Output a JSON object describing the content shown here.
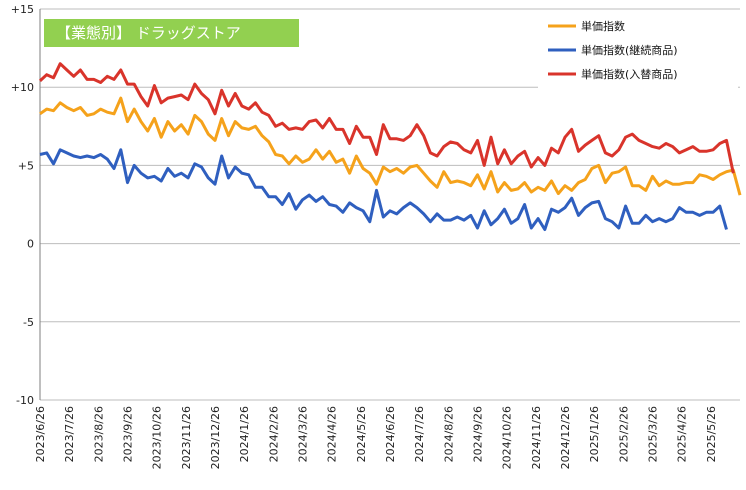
{
  "chart_data": {
    "type": "line",
    "title": "【業態別】 ドラッグストア",
    "xlabel": "",
    "ylabel": "",
    "ylim": [
      -10,
      15
    ],
    "yticks": [
      -10,
      -5,
      0,
      5,
      10,
      15
    ],
    "ytick_labels": [
      "-10",
      "-5",
      "0",
      "+5",
      "+10",
      "+15"
    ],
    "grid": "horizontal",
    "legend_position": "top-right",
    "x_tick_labels": [
      "2023/6/26",
      "2023/7/26",
      "2023/8/26",
      "2023/9/26",
      "2023/10/26",
      "2023/11/26",
      "2023/12/26",
      "2024/1/26",
      "2024/2/26",
      "2024/3/26",
      "2024/4/26",
      "2024/5/26",
      "2024/6/26",
      "2024/7/26",
      "2024/8/26",
      "2024/9/26",
      "2024/10/26",
      "2024/11/26",
      "2024/12/26",
      "2025/1/26",
      "2025/2/26",
      "2025/3/26",
      "2025/4/26",
      "2025/5/26"
    ],
    "series": [
      {
        "name": "単価指数",
        "color": "#F5A21B",
        "values": [
          8.3,
          8.6,
          8.5,
          9.0,
          8.7,
          8.5,
          8.7,
          8.2,
          8.3,
          8.6,
          8.4,
          8.3,
          9.3,
          7.8,
          8.6,
          7.8,
          7.2,
          8.0,
          6.8,
          7.8,
          7.2,
          7.6,
          7.0,
          8.2,
          7.8,
          7.0,
          6.6,
          8.0,
          6.9,
          7.8,
          7.4,
          7.3,
          7.5,
          6.9,
          6.5,
          5.7,
          5.6,
          5.1,
          5.6,
          5.2,
          5.4,
          6.0,
          5.4,
          5.9,
          5.2,
          5.4,
          4.5,
          5.6,
          4.8,
          4.5,
          3.8,
          4.9,
          4.6,
          4.8,
          4.5,
          4.9,
          5.0,
          4.5,
          4.0,
          3.6,
          4.6,
          3.9,
          4.0,
          3.9,
          3.7,
          4.4,
          3.5,
          4.6,
          3.3,
          3.9,
          3.4,
          3.5,
          3.9,
          3.3,
          3.6,
          3.4,
          4.0,
          3.2,
          3.7,
          3.4,
          3.9,
          4.1,
          4.8,
          5.0,
          3.9,
          4.5,
          4.6,
          4.9,
          3.7,
          3.7,
          3.4,
          4.3,
          3.7,
          4.0,
          3.8,
          3.8,
          3.9,
          3.9,
          4.4,
          4.3,
          4.1,
          4.4,
          4.6,
          4.7,
          3.1
        ]
      },
      {
        "name": "単価指数(継続商品)",
        "color": "#2F5FBF",
        "values": [
          5.7,
          5.8,
          5.1,
          6.0,
          5.8,
          5.6,
          5.5,
          5.6,
          5.5,
          5.7,
          5.4,
          4.8,
          6.0,
          3.9,
          5.0,
          4.5,
          4.2,
          4.3,
          4.0,
          4.8,
          4.3,
          4.5,
          4.2,
          5.1,
          4.9,
          4.2,
          3.8,
          5.6,
          4.2,
          4.9,
          4.5,
          4.4,
          3.6,
          3.6,
          3.0,
          3.0,
          2.5,
          3.2,
          2.2,
          2.8,
          3.1,
          2.7,
          3.0,
          2.5,
          2.4,
          2.0,
          2.6,
          2.3,
          2.1,
          1.4,
          3.4,
          1.7,
          2.1,
          1.9,
          2.3,
          2.6,
          2.3,
          1.9,
          1.4,
          1.9,
          1.5,
          1.5,
          1.7,
          1.5,
          1.8,
          1.0,
          2.1,
          1.2,
          1.6,
          2.2,
          1.3,
          1.6,
          2.5,
          1.0,
          1.6,
          0.9,
          2.2,
          2.0,
          2.3,
          2.9,
          1.8,
          2.3,
          2.6,
          2.7,
          1.6,
          1.4,
          1.0,
          2.4,
          1.3,
          1.3,
          1.8,
          1.4,
          1.6,
          1.4,
          1.6,
          2.3,
          2.0,
          2.0,
          1.8,
          2.0,
          2.0,
          2.4,
          0.9
        ]
      },
      {
        "name": "単価指数(入替商品)",
        "color": "#D9342B",
        "values": [
          10.4,
          10.8,
          10.6,
          11.5,
          11.1,
          10.7,
          11.1,
          10.5,
          10.5,
          10.3,
          10.7,
          10.5,
          11.1,
          10.2,
          10.2,
          9.4,
          8.8,
          10.1,
          9.0,
          9.3,
          9.4,
          9.5,
          9.2,
          10.2,
          9.6,
          9.2,
          8.3,
          9.8,
          8.8,
          9.6,
          8.8,
          8.6,
          9.0,
          8.4,
          8.2,
          7.5,
          7.7,
          7.3,
          7.4,
          7.3,
          7.8,
          7.9,
          7.4,
          8.0,
          7.3,
          7.3,
          6.4,
          7.5,
          6.8,
          6.8,
          5.7,
          7.6,
          6.7,
          6.7,
          6.6,
          6.9,
          7.6,
          6.9,
          5.8,
          5.6,
          6.2,
          6.5,
          6.4,
          6.0,
          5.8,
          6.6,
          5.0,
          6.8,
          5.1,
          6.0,
          5.1,
          5.6,
          5.9,
          4.9,
          5.5,
          5.0,
          6.1,
          5.8,
          6.8,
          7.3,
          5.9,
          6.3,
          6.6,
          6.9,
          5.8,
          5.6,
          6.0,
          6.8,
          7.0,
          6.6,
          6.4,
          6.2,
          6.1,
          6.4,
          6.2,
          5.8,
          6.0,
          6.2,
          5.9,
          5.9,
          6.0,
          6.4,
          6.6,
          4.5
        ]
      }
    ]
  }
}
